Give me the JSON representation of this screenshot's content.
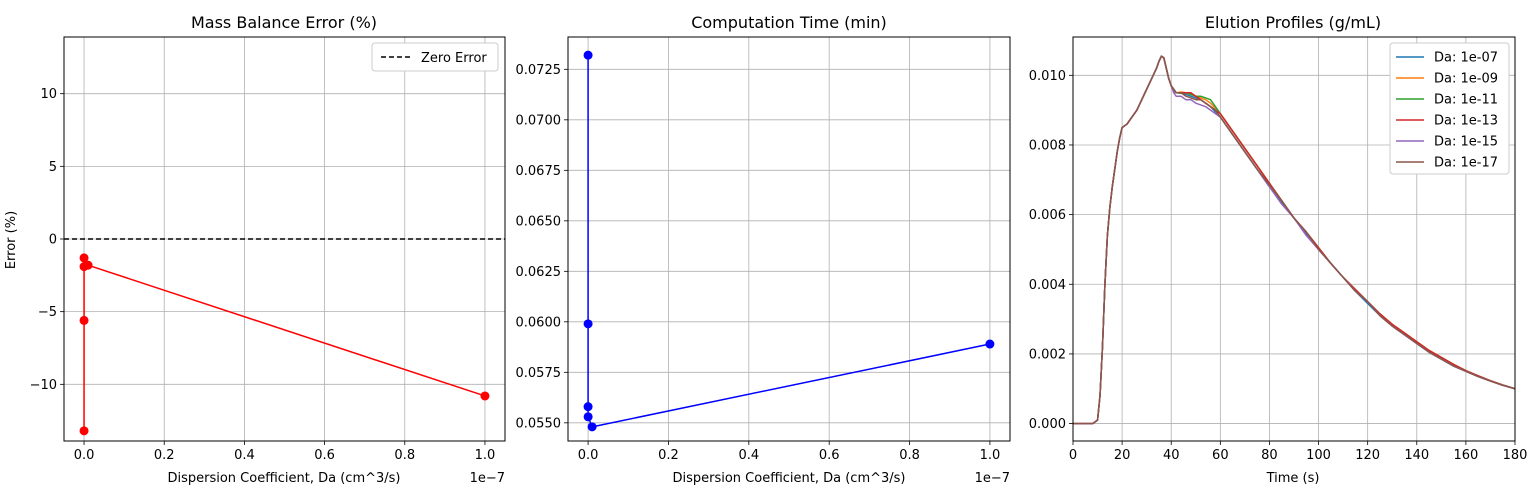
{
  "chart_data": [
    {
      "type": "line",
      "title": "Mass Balance Error (%)",
      "xlabel": "Dispersion Coefficient, Da (cm^3/s)",
      "ylabel": "Error (%)",
      "x_offset_label": "1e−7",
      "xlim": [
        -0.05,
        1.05
      ],
      "ylim": [
        -13.9,
        13.9
      ],
      "xticks": [
        0.0,
        0.2,
        0.4,
        0.6,
        0.8,
        1.0
      ],
      "xtick_labels": [
        "0.0",
        "0.2",
        "0.4",
        "0.6",
        "0.8",
        "1.0"
      ],
      "yticks": [
        -10,
        -5,
        0,
        5,
        10
      ],
      "ytick_labels": [
        "−10",
        "−5",
        "0",
        "5",
        "10"
      ],
      "grid": true,
      "legend_position": "top-right",
      "series": [
        {
          "color": "#ff0000",
          "marker": "circle",
          "x": [
            1.0,
            0.01,
            0.0001,
            1e-06,
            1e-08,
            1e-10
          ],
          "y": [
            -10.8,
            -1.8,
            -1.9,
            -13.2,
            -5.6,
            -1.3
          ]
        }
      ],
      "reference_lines": [
        {
          "name": "Zero Error",
          "y": 0,
          "color": "#000000",
          "style": "dashed"
        }
      ]
    },
    {
      "type": "line",
      "title": "Computation Time (min)",
      "xlabel": "Dispersion Coefficient, Da (cm^3/s)",
      "ylabel": "",
      "x_offset_label": "1e−7",
      "xlim": [
        -0.05,
        1.05
      ],
      "ylim": [
        0.0541,
        0.0741
      ],
      "xticks": [
        0.0,
        0.2,
        0.4,
        0.6,
        0.8,
        1.0
      ],
      "xtick_labels": [
        "0.0",
        "0.2",
        "0.4",
        "0.6",
        "0.8",
        "1.0"
      ],
      "yticks": [
        0.055,
        0.0575,
        0.06,
        0.0625,
        0.065,
        0.0675,
        0.07,
        0.0725
      ],
      "ytick_labels": [
        "0.0550",
        "0.0575",
        "0.0600",
        "0.0625",
        "0.0650",
        "0.0675",
        "0.0700",
        "0.0725"
      ],
      "grid": true,
      "series": [
        {
          "color": "#0000ff",
          "marker": "circle",
          "x": [
            1.0,
            0.01,
            0.0001,
            1e-06,
            1e-08,
            1e-10
          ],
          "y": [
            0.0589,
            0.0548,
            0.0553,
            0.0558,
            0.0599,
            0.0732
          ]
        }
      ]
    },
    {
      "type": "line",
      "title": "Elution Profiles (g/mL)",
      "xlabel": "Time (s)",
      "ylabel": "",
      "xlim": [
        0,
        180
      ],
      "ylim": [
        -0.0005,
        0.0111
      ],
      "xticks": [
        0,
        20,
        40,
        60,
        80,
        100,
        120,
        140,
        160,
        180
      ],
      "xtick_labels": [
        "0",
        "20",
        "40",
        "60",
        "80",
        "100",
        "120",
        "140",
        "160",
        "180"
      ],
      "yticks": [
        0,
        0.002,
        0.004,
        0.006,
        0.008,
        0.01
      ],
      "ytick_labels": [
        "0.000",
        "0.002",
        "0.004",
        "0.006",
        "0.008",
        "0.010"
      ],
      "grid": true,
      "legend_position": "top-right",
      "x": [
        0,
        8,
        10,
        11,
        12,
        13,
        14,
        15,
        16,
        17,
        18,
        19,
        20,
        22,
        24,
        26,
        28,
        30,
        32,
        34,
        35,
        36,
        37,
        38,
        39,
        40,
        41,
        42,
        44,
        46,
        48,
        50,
        52,
        54,
        56,
        58,
        60,
        62,
        65,
        70,
        75,
        80,
        85,
        90,
        95,
        100,
        105,
        110,
        115,
        120,
        125,
        130,
        135,
        140,
        145,
        150,
        155,
        160,
        165,
        170,
        175,
        180
      ],
      "series": [
        {
          "name": "Da: 1e-07",
          "color": "#1f77b4",
          "y": [
            0,
            0,
            0.0001,
            0.0008,
            0.0022,
            0.004,
            0.0054,
            0.0062,
            0.0068,
            0.0073,
            0.0078,
            0.0082,
            0.0085,
            0.0086,
            0.0088,
            0.009,
            0.0093,
            0.0096,
            0.0099,
            0.0102,
            0.0104,
            0.01055,
            0.0105,
            0.0102,
            0.0099,
            0.0097,
            0.00955,
            0.0095,
            0.0095,
            0.00945,
            0.0094,
            0.00935,
            0.0093,
            0.0092,
            0.0091,
            0.00895,
            0.0088,
            0.0086,
            0.0083,
            0.0078,
            0.0073,
            0.0068,
            0.00635,
            0.0059,
            0.00545,
            0.005,
            0.0046,
            0.0042,
            0.0038,
            0.00345,
            0.0031,
            0.0028,
            0.00255,
            0.0023,
            0.00205,
            0.00185,
            0.00165,
            0.0015,
            0.00135,
            0.00122,
            0.0011,
            0.001
          ]
        },
        {
          "name": "Da: 1e-09",
          "color": "#ff7f0e",
          "y": [
            0,
            0,
            0.0001,
            0.0008,
            0.0022,
            0.004,
            0.0054,
            0.0062,
            0.0068,
            0.0073,
            0.0078,
            0.0082,
            0.0085,
            0.0086,
            0.0088,
            0.009,
            0.0093,
            0.0096,
            0.0099,
            0.0102,
            0.0104,
            0.01055,
            0.0105,
            0.0102,
            0.0099,
            0.0097,
            0.0096,
            0.0095,
            0.00952,
            0.0095,
            0.00945,
            0.0094,
            0.00935,
            0.0093,
            0.0092,
            0.00905,
            0.0089,
            0.0087,
            0.0084,
            0.0079,
            0.0074,
            0.0069,
            0.0064,
            0.0059,
            0.0055,
            0.00505,
            0.0046,
            0.0042,
            0.00385,
            0.0035,
            0.00315,
            0.00285,
            0.0026,
            0.00235,
            0.0021,
            0.0019,
            0.0017,
            0.00152,
            0.00137,
            0.00123,
            0.00111,
            0.001
          ]
        },
        {
          "name": "Da: 1e-11",
          "color": "#2ca02c",
          "y": [
            0,
            0,
            0.0001,
            0.0008,
            0.0022,
            0.004,
            0.0054,
            0.0062,
            0.0068,
            0.0073,
            0.0078,
            0.0082,
            0.0085,
            0.0086,
            0.0088,
            0.009,
            0.0093,
            0.0096,
            0.0099,
            0.0102,
            0.0104,
            0.01055,
            0.0105,
            0.0102,
            0.0099,
            0.0097,
            0.0096,
            0.0095,
            0.00948,
            0.0095,
            0.00945,
            0.0094,
            0.0094,
            0.00935,
            0.0093,
            0.0091,
            0.0089,
            0.0087,
            0.0084,
            0.0079,
            0.0074,
            0.0069,
            0.0064,
            0.0059,
            0.0055,
            0.00505,
            0.0046,
            0.0042,
            0.00385,
            0.0035,
            0.00315,
            0.00285,
            0.0026,
            0.00235,
            0.0021,
            0.0019,
            0.0017,
            0.00152,
            0.00137,
            0.00123,
            0.00111,
            0.001
          ]
        },
        {
          "name": "Da: 1e-13",
          "color": "#d62728",
          "y": [
            0,
            0,
            0.0001,
            0.0008,
            0.0022,
            0.004,
            0.0054,
            0.0062,
            0.0068,
            0.0073,
            0.0078,
            0.0082,
            0.0085,
            0.0086,
            0.0088,
            0.009,
            0.0093,
            0.0096,
            0.0099,
            0.0102,
            0.0104,
            0.01055,
            0.0105,
            0.0102,
            0.0099,
            0.0097,
            0.0096,
            0.0095,
            0.0095,
            0.0095,
            0.0095,
            0.0094,
            0.0093,
            0.0092,
            0.0091,
            0.009,
            0.0089,
            0.0087,
            0.0084,
            0.0079,
            0.0074,
            0.0069,
            0.0064,
            0.0059,
            0.0055,
            0.00505,
            0.0046,
            0.0042,
            0.00385,
            0.0035,
            0.00315,
            0.00285,
            0.0026,
            0.00235,
            0.0021,
            0.0019,
            0.0017,
            0.00152,
            0.00137,
            0.00123,
            0.00111,
            0.001
          ]
        },
        {
          "name": "Da: 1e-15",
          "color": "#9467bd",
          "y": [
            0,
            0,
            0.0001,
            0.0008,
            0.0022,
            0.004,
            0.0054,
            0.0062,
            0.0068,
            0.0073,
            0.0078,
            0.0082,
            0.0085,
            0.0086,
            0.0088,
            0.009,
            0.0093,
            0.0096,
            0.0099,
            0.0102,
            0.0104,
            0.01055,
            0.0105,
            0.0102,
            0.0099,
            0.0097,
            0.0095,
            0.0094,
            0.0094,
            0.0093,
            0.0093,
            0.0092,
            0.00915,
            0.0091,
            0.009,
            0.0089,
            0.0088,
            0.0086,
            0.0083,
            0.0078,
            0.0073,
            0.0068,
            0.0063,
            0.0059,
            0.0054,
            0.005,
            0.0046,
            0.0042,
            0.0038,
            0.0035,
            0.0031,
            0.0028,
            0.00255,
            0.0023,
            0.00205,
            0.00185,
            0.00165,
            0.0015,
            0.00135,
            0.00122,
            0.0011,
            0.001
          ]
        },
        {
          "name": "Da: 1e-17",
          "color": "#8c564b",
          "y": [
            0,
            0,
            0.0001,
            0.0008,
            0.0022,
            0.004,
            0.0054,
            0.0062,
            0.0068,
            0.0073,
            0.0078,
            0.0082,
            0.0085,
            0.0086,
            0.0088,
            0.009,
            0.0093,
            0.0096,
            0.0099,
            0.0102,
            0.0104,
            0.01055,
            0.0105,
            0.0102,
            0.0099,
            0.0097,
            0.0096,
            0.0095,
            0.0095,
            0.0094,
            0.00935,
            0.0093,
            0.0093,
            0.0092,
            0.0091,
            0.009,
            0.0088,
            0.0086,
            0.0083,
            0.0078,
            0.0073,
            0.00685,
            0.0064,
            0.0059,
            0.0055,
            0.005,
            0.0046,
            0.0042,
            0.0038,
            0.0035,
            0.0031,
            0.0028,
            0.00255,
            0.0023,
            0.00205,
            0.00185,
            0.00165,
            0.0015,
            0.00135,
            0.00122,
            0.0011,
            0.001
          ]
        }
      ]
    }
  ]
}
